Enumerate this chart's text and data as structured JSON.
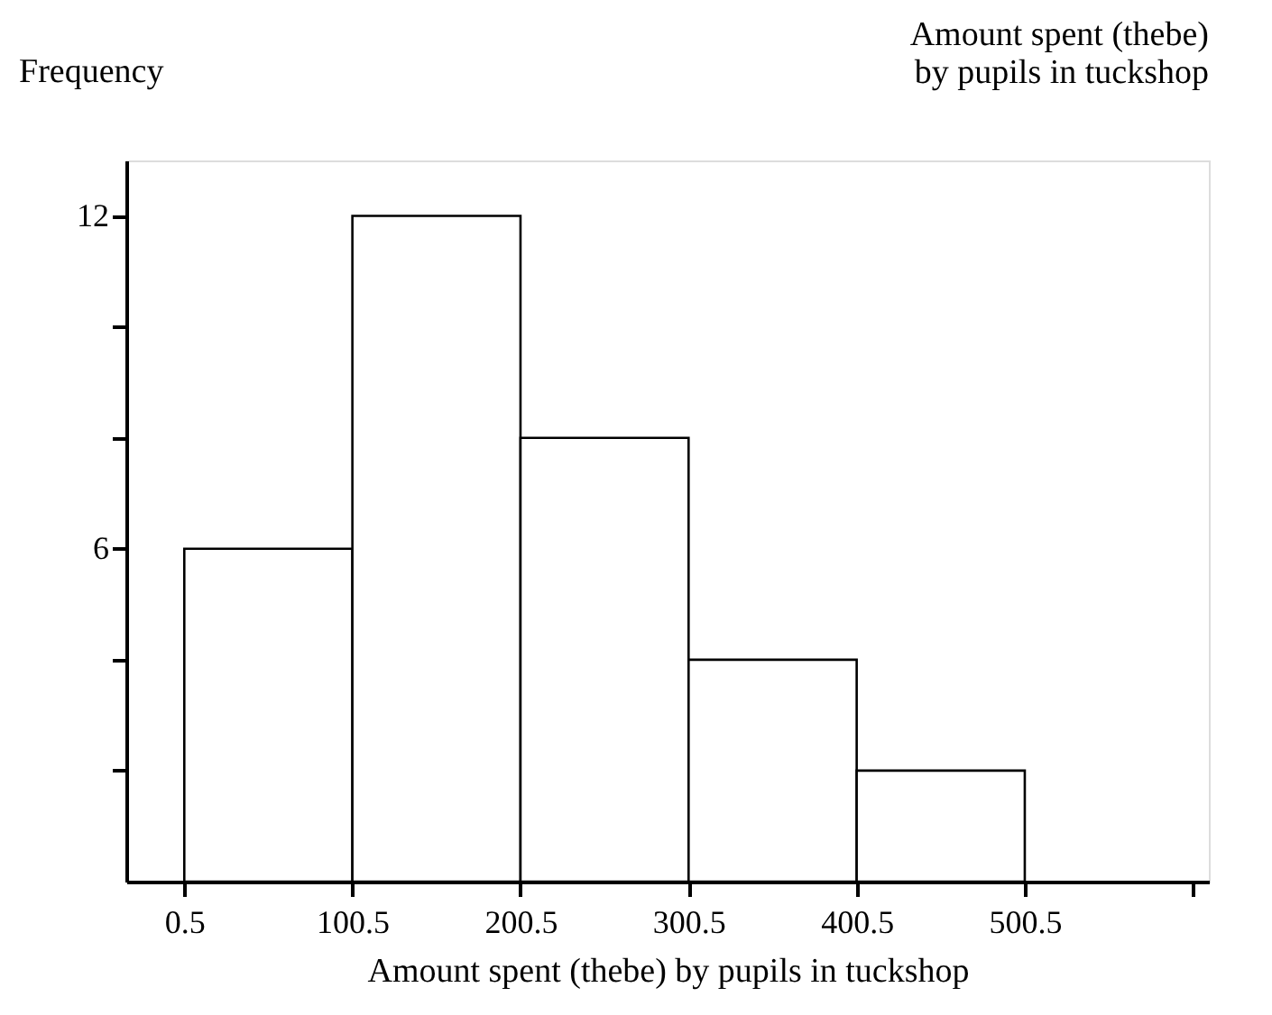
{
  "chart_data": {
    "type": "histogram",
    "title": "Amount spent (thebe)\nby pupils in tuckshop",
    "xlabel": "Amount spent (thebe) by pupils in tuckshop",
    "ylabel": "Frequency",
    "bins": [
      0.5,
      100.5,
      200.5,
      300.5,
      400.5,
      500.5
    ],
    "values": [
      6,
      12,
      8,
      4,
      2
    ],
    "color": "#ffffff",
    "xlim": [
      -34,
      610
    ],
    "xticks": [
      0.5,
      100.5,
      200.5,
      300.5,
      400.5,
      500.5,
      {
        "value": 600.5,
        "label": null
      }
    ],
    "ylim": [
      0,
      13
    ],
    "yticks": [
      {
        "value": 2,
        "label": null
      },
      {
        "value": 4,
        "label": null
      },
      6,
      {
        "value": 8,
        "label": null
      },
      {
        "value": 10,
        "label": null
      },
      12
    ],
    "grid": false
  }
}
